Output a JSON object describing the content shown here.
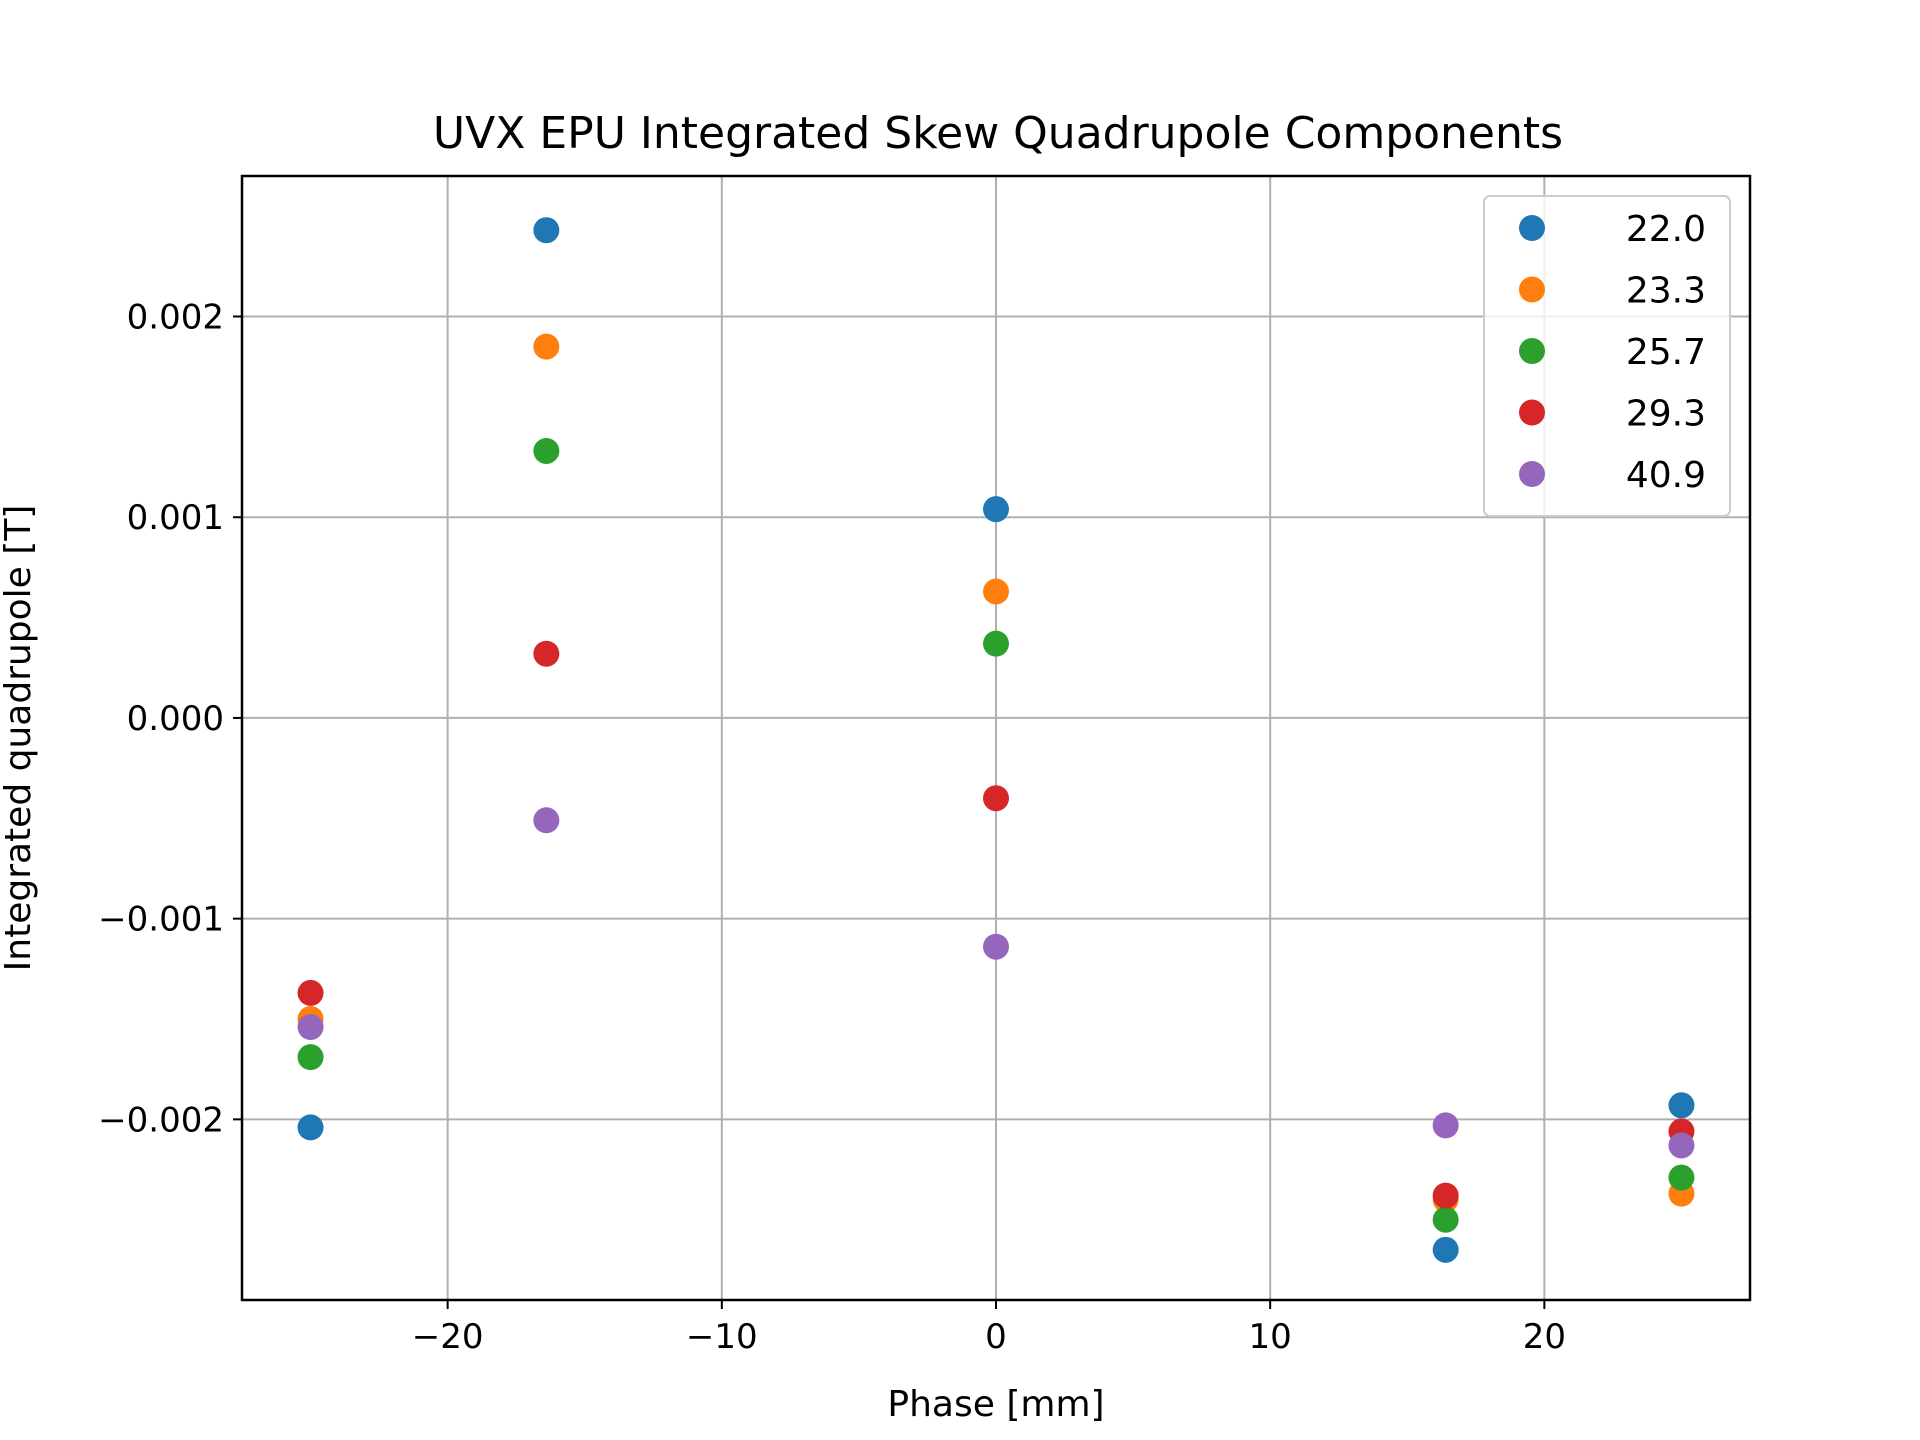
{
  "chart_data": {
    "type": "scatter",
    "title": "UVX EPU Integrated Skew Quadrupole Components",
    "xlabel": "Phase [mm]",
    "ylabel": "Integrated quadrupole [T]",
    "xlim": [
      -27.5,
      27.5
    ],
    "ylim": [
      -0.0029,
      0.0027
    ],
    "xticks": [
      -20,
      -10,
      0,
      10,
      20
    ],
    "xtick_labels": [
      "−20",
      "−10",
      "0",
      "10",
      "20"
    ],
    "yticks": [
      -0.002,
      -0.001,
      0.0,
      0.001,
      0.002
    ],
    "ytick_labels": [
      "−0.002",
      "−0.001",
      "0.000",
      "0.001",
      "0.002"
    ],
    "grid": true,
    "legend_position": "top-right",
    "x": [
      -25,
      -16.4,
      0,
      16.4,
      25
    ],
    "series": [
      {
        "name": "22.0",
        "color": "#1f77b4",
        "values": [
          -0.00204,
          0.00243,
          0.00104,
          -0.00265,
          -0.00193
        ]
      },
      {
        "name": "23.3",
        "color": "#ff7f0e",
        "values": [
          -0.0015,
          0.00185,
          0.00063,
          -0.0024,
          -0.00237
        ]
      },
      {
        "name": "25.7",
        "color": "#2ca02c",
        "values": [
          -0.00169,
          0.00133,
          0.00037,
          -0.0025,
          -0.00229
        ]
      },
      {
        "name": "29.3",
        "color": "#d62728",
        "values": [
          -0.00137,
          0.00032,
          -0.0004,
          -0.00238,
          -0.00206
        ]
      },
      {
        "name": "40.9",
        "color": "#9467bd",
        "values": [
          -0.00154,
          -0.00051,
          -0.00114,
          -0.00203,
          -0.00213
        ]
      }
    ]
  }
}
